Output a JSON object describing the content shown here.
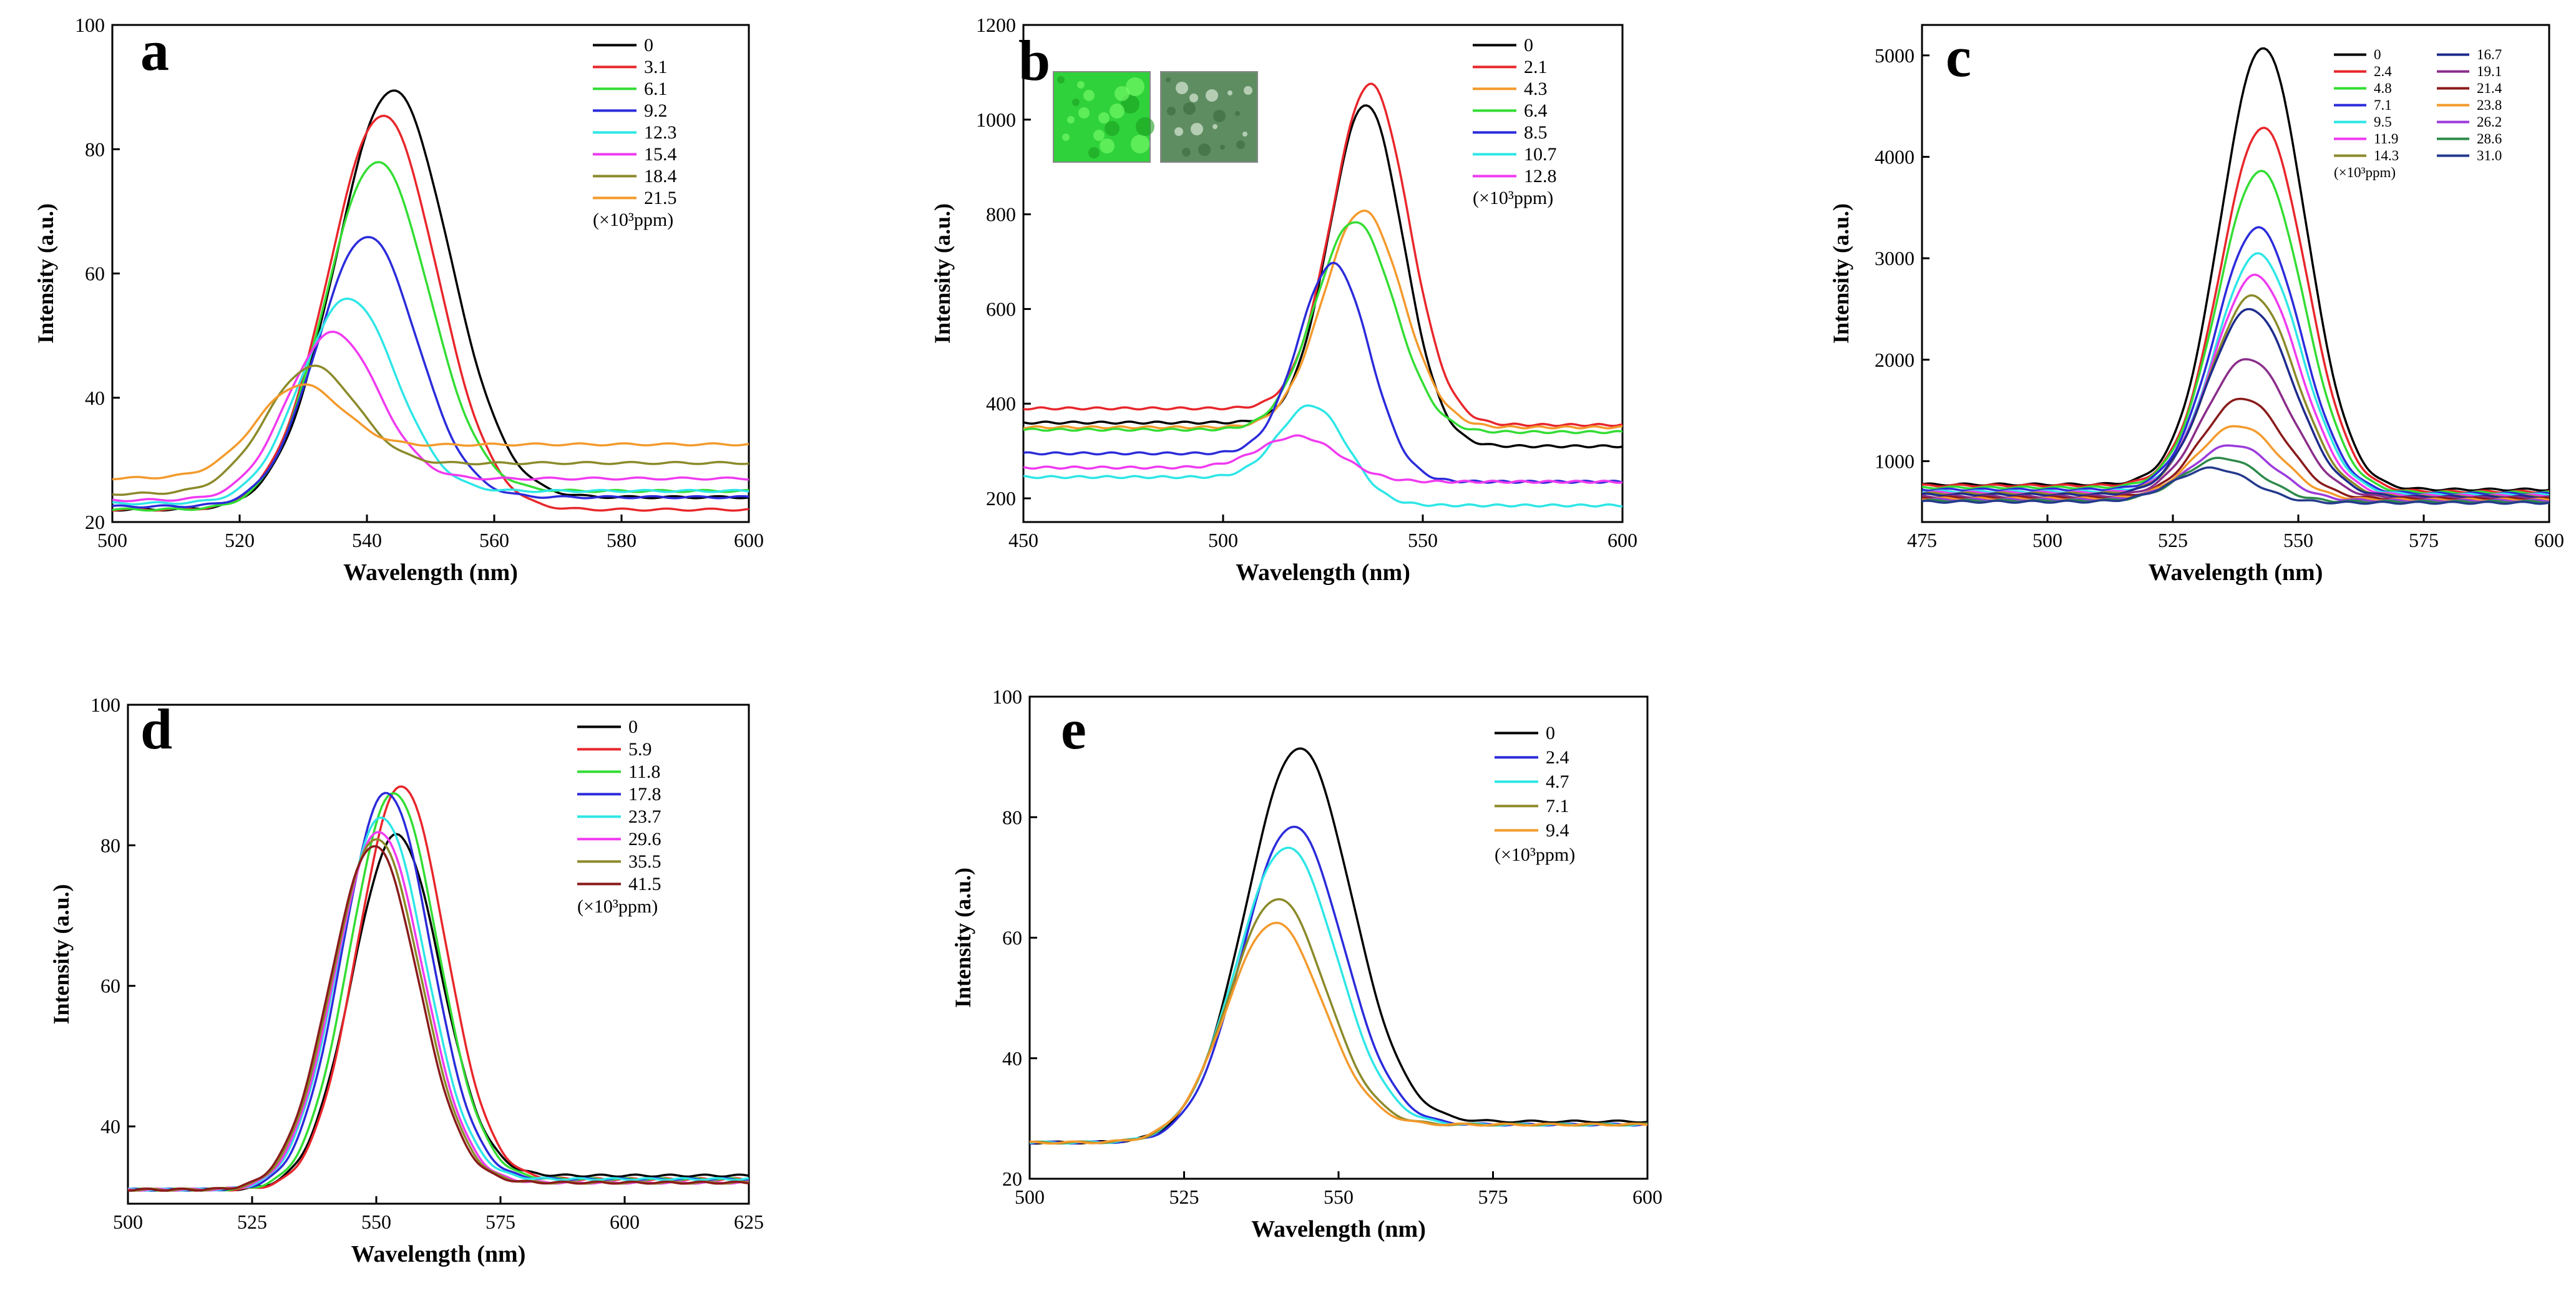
{
  "figure": {
    "panels": [
      "a",
      "b",
      "c",
      "d",
      "e"
    ]
  },
  "chart_data": [
    {
      "id": "a",
      "type": "line",
      "letter": "a",
      "xlabel": "Wavelength (nm)",
      "ylabel": "Intensity (a.u.)",
      "xlim": [
        500,
        600
      ],
      "ylim": [
        20,
        100
      ],
      "xticks": [
        500,
        520,
        540,
        560,
        580,
        600
      ],
      "yticks": [
        20,
        40,
        60,
        80,
        100
      ],
      "legend_note": "(×10³ppm)",
      "legend_position": "top-right",
      "series": [
        {
          "name": "0",
          "color": "#000000",
          "baseline": 22,
          "peak_x": 544,
          "peak_y": 89.5,
          "width": 12.5,
          "tail": 24
        },
        {
          "name": "3.1",
          "color": "#e8262b",
          "baseline": 22,
          "peak_x": 542.5,
          "peak_y": 85.5,
          "width": 12,
          "tail": 22
        },
        {
          "name": "6.1",
          "color": "#33dd33",
          "baseline": 22,
          "peak_x": 541.5,
          "peak_y": 78,
          "width": 11.5,
          "tail": 25
        },
        {
          "name": "9.2",
          "color": "#2b2bdb",
          "baseline": 22.5,
          "peak_x": 540,
          "peak_y": 66,
          "width": 11,
          "tail": 24
        },
        {
          "name": "12.3",
          "color": "#2ee6e6",
          "baseline": 23,
          "peak_x": 537,
          "peak_y": 56,
          "width": 10.5,
          "tail": 25
        },
        {
          "name": "15.4",
          "color": "#f03af0",
          "baseline": 23.5,
          "peak_x": 534.5,
          "peak_y": 50.5,
          "width": 10,
          "tail": 27
        },
        {
          "name": "18.4",
          "color": "#8b8a2a",
          "baseline": 24.5,
          "peak_x": 531,
          "peak_y": 45,
          "width": 10,
          "tail": 29.5
        },
        {
          "name": "21.5",
          "color": "#f39a2c",
          "baseline": 27,
          "peak_x": 529,
          "peak_y": 42,
          "width": 9.5,
          "tail": 32.5
        }
      ]
    },
    {
      "id": "b",
      "type": "line",
      "letter": "b",
      "xlabel": "Wavelength (nm)",
      "ylabel": "Intensity (a.u.)",
      "xlim": [
        450,
        600
      ],
      "ylim": [
        150,
        1200
      ],
      "xticks": [
        450,
        500,
        550,
        600
      ],
      "yticks": [
        200,
        400,
        600,
        800,
        1000,
        1200
      ],
      "legend_note": "(×10³ppm)",
      "legend_position": "top-right",
      "inset": {
        "description": "two photographs of sensor film",
        "colors": [
          "#2fd23a",
          "#5f8d62"
        ]
      },
      "series": [
        {
          "name": "0",
          "color": "#000000",
          "baseline": 360,
          "peak_x": 536,
          "peak_y": 1032,
          "width": 13,
          "tail": 310
        },
        {
          "name": "2.1",
          "color": "#e8262b",
          "baseline": 390,
          "peak_x": 537,
          "peak_y": 1075,
          "width": 13.5,
          "tail": 355
        },
        {
          "name": "4.3",
          "color": "#f39a2c",
          "baseline": 350,
          "peak_x": 535,
          "peak_y": 808,
          "width": 14,
          "tail": 350
        },
        {
          "name": "6.4",
          "color": "#33dd33",
          "baseline": 345,
          "peak_x": 533,
          "peak_y": 785,
          "width": 14,
          "tail": 340
        },
        {
          "name": "8.5",
          "color": "#2b2bdb",
          "baseline": 295,
          "peak_x": 528,
          "peak_y": 695,
          "width": 12.5,
          "tail": 235
        },
        {
          "name": "10.7",
          "color": "#2ee6e6",
          "baseline": 245,
          "peak_x": 523,
          "peak_y": 395,
          "width": 12,
          "tail": 185
        },
        {
          "name": "12.8",
          "color": "#f03af0",
          "baseline": 265,
          "peak_x": 520,
          "peak_y": 330,
          "width": 14,
          "tail": 235
        }
      ]
    },
    {
      "id": "c",
      "type": "line",
      "letter": "c",
      "xlabel": "Wavelength (nm)",
      "ylabel": "Intensity (a.u.)",
      "xlim": [
        475,
        600
      ],
      "ylim": [
        400,
        5300
      ],
      "xticks": [
        475,
        500,
        525,
        550,
        575,
        600
      ],
      "yticks": [
        1000,
        2000,
        3000,
        4000,
        5000
      ],
      "legend_note": "(×10³ppm)",
      "legend_position": "top-right",
      "series": [
        {
          "name": "0",
          "color": "#000000",
          "baseline": 770,
          "peak_x": 543,
          "peak_y": 5080,
          "width": 12,
          "tail": 720
        },
        {
          "name": "2.4",
          "color": "#e8262b",
          "baseline": 760,
          "peak_x": 543,
          "peak_y": 4290,
          "width": 12,
          "tail": 700
        },
        {
          "name": "4.8",
          "color": "#33dd33",
          "baseline": 740,
          "peak_x": 542.5,
          "peak_y": 3860,
          "width": 12,
          "tail": 690
        },
        {
          "name": "7.1",
          "color": "#2b2bdb",
          "baseline": 720,
          "peak_x": 542,
          "peak_y": 3300,
          "width": 12,
          "tail": 680
        },
        {
          "name": "9.5",
          "color": "#2ee6e6",
          "baseline": 700,
          "peak_x": 542,
          "peak_y": 3040,
          "width": 12,
          "tail": 670
        },
        {
          "name": "11.9",
          "color": "#f03af0",
          "baseline": 690,
          "peak_x": 541.5,
          "peak_y": 2830,
          "width": 12,
          "tail": 660
        },
        {
          "name": "14.3",
          "color": "#8b8a2a",
          "baseline": 680,
          "peak_x": 541,
          "peak_y": 2630,
          "width": 12,
          "tail": 650
        },
        {
          "name": "16.7",
          "color": "#1d2a8c",
          "baseline": 670,
          "peak_x": 540.5,
          "peak_y": 2500,
          "width": 12,
          "tail": 650
        },
        {
          "name": "19.1",
          "color": "#8a2d8a",
          "baseline": 650,
          "peak_x": 540,
          "peak_y": 2010,
          "width": 12,
          "tail": 640
        },
        {
          "name": "21.4",
          "color": "#8a1b1b",
          "baseline": 640,
          "peak_x": 539,
          "peak_y": 1620,
          "width": 11.5,
          "tail": 630
        },
        {
          "name": "23.8",
          "color": "#f39a2c",
          "baseline": 630,
          "peak_x": 538,
          "peak_y": 1350,
          "width": 11.5,
          "tail": 620
        },
        {
          "name": "26.2",
          "color": "#9b3bdb",
          "baseline": 620,
          "peak_x": 537,
          "peak_y": 1160,
          "width": 11.5,
          "tail": 610
        },
        {
          "name": "28.6",
          "color": "#2d8a4a",
          "baseline": 610,
          "peak_x": 535,
          "peak_y": 1030,
          "width": 11,
          "tail": 600
        },
        {
          "name": "31.0",
          "color": "#243a8c",
          "baseline": 600,
          "peak_x": 533,
          "peak_y": 930,
          "width": 11,
          "tail": 590
        }
      ]
    },
    {
      "id": "d",
      "type": "line",
      "letter": "d",
      "xlabel": "Wavelength (nm)",
      "ylabel": "Intensity (a.u.)",
      "xlim": [
        500,
        625
      ],
      "ylim": [
        29,
        100
      ],
      "xticks": [
        500,
        525,
        550,
        575,
        600,
        625
      ],
      "yticks": [
        40,
        60,
        80,
        100
      ],
      "legend_note": "(×10³ppm)",
      "legend_position": "top-right",
      "series": [
        {
          "name": "0",
          "color": "#000000",
          "baseline": 31,
          "peak_x": 554,
          "peak_y": 81.5,
          "width": 12.5,
          "tail": 33
        },
        {
          "name": "5.9",
          "color": "#e8262b",
          "baseline": 31,
          "peak_x": 555,
          "peak_y": 88.5,
          "width": 12.5,
          "tail": 32.5
        },
        {
          "name": "11.8",
          "color": "#33dd33",
          "baseline": 31,
          "peak_x": 553.5,
          "peak_y": 87.5,
          "width": 12.5,
          "tail": 32.5
        },
        {
          "name": "17.8",
          "color": "#2b2bdb",
          "baseline": 31,
          "peak_x": 552,
          "peak_y": 87.5,
          "width": 12.5,
          "tail": 32.5
        },
        {
          "name": "23.7",
          "color": "#2ee6e6",
          "baseline": 31,
          "peak_x": 551,
          "peak_y": 84,
          "width": 12.5,
          "tail": 32.5
        },
        {
          "name": "29.6",
          "color": "#f03af0",
          "baseline": 31,
          "peak_x": 550.5,
          "peak_y": 82,
          "width": 12.5,
          "tail": 32
        },
        {
          "name": "35.5",
          "color": "#8b8a2a",
          "baseline": 31,
          "peak_x": 550,
          "peak_y": 81,
          "width": 12.5,
          "tail": 32
        },
        {
          "name": "41.5",
          "color": "#8a1b1b",
          "baseline": 31,
          "peak_x": 549.5,
          "peak_y": 80,
          "width": 12.5,
          "tail": 32
        }
      ]
    },
    {
      "id": "e",
      "type": "line",
      "letter": "e",
      "xlabel": "Wavelength (nm)",
      "ylabel": "Intensity (a.u.)",
      "xlim": [
        500,
        600
      ],
      "ylim": [
        20,
        100
      ],
      "xticks": [
        500,
        525,
        550,
        575,
        600
      ],
      "yticks": [
        20,
        40,
        60,
        80,
        100
      ],
      "legend_note": "(×10³ppm)",
      "legend_position": "top-left",
      "series": [
        {
          "name": "0",
          "color": "#000000",
          "baseline": 26,
          "peak_x": 543.5,
          "peak_y": 91.5,
          "width": 12,
          "tail": 29.5
        },
        {
          "name": "2.4",
          "color": "#2b2bdb",
          "baseline": 26,
          "peak_x": 542.5,
          "peak_y": 78.5,
          "width": 11.5,
          "tail": 29
        },
        {
          "name": "4.7",
          "color": "#2ee6e6",
          "baseline": 26,
          "peak_x": 541.5,
          "peak_y": 75,
          "width": 11.5,
          "tail": 29
        },
        {
          "name": "7.1",
          "color": "#8b8a2a",
          "baseline": 26,
          "peak_x": 540,
          "peak_y": 66.5,
          "width": 11,
          "tail": 29
        },
        {
          "name": "9.4",
          "color": "#f39a2c",
          "baseline": 26,
          "peak_x": 539.5,
          "peak_y": 62.5,
          "width": 11,
          "tail": 29
        }
      ]
    }
  ]
}
